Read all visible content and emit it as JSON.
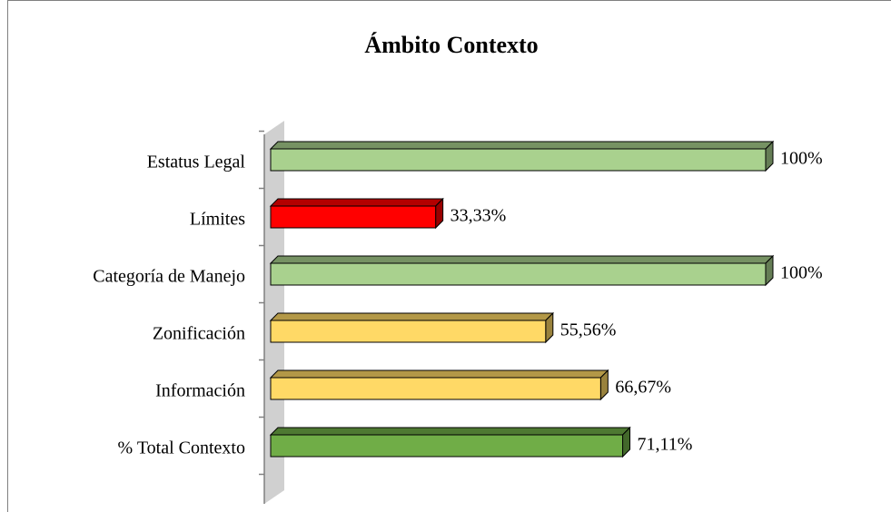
{
  "chart_data": {
    "type": "bar",
    "orientation": "horizontal",
    "title": "Ámbito Contexto",
    "categories": [
      "Estatus Legal",
      "Límites",
      "Categoría de Manejo",
      "Zonificación",
      "Información",
      "% Total Contexto"
    ],
    "values": [
      100,
      33.33,
      100,
      55.56,
      66.67,
      71.11
    ],
    "value_labels": [
      "100%",
      "33,33%",
      "100%",
      "55,56%",
      "66,67%",
      "71,11%"
    ],
    "colors": [
      "#a9d18e",
      "#ff0000",
      "#a9d18e",
      "#ffd966",
      "#ffd966",
      "#70ad47"
    ]
  }
}
